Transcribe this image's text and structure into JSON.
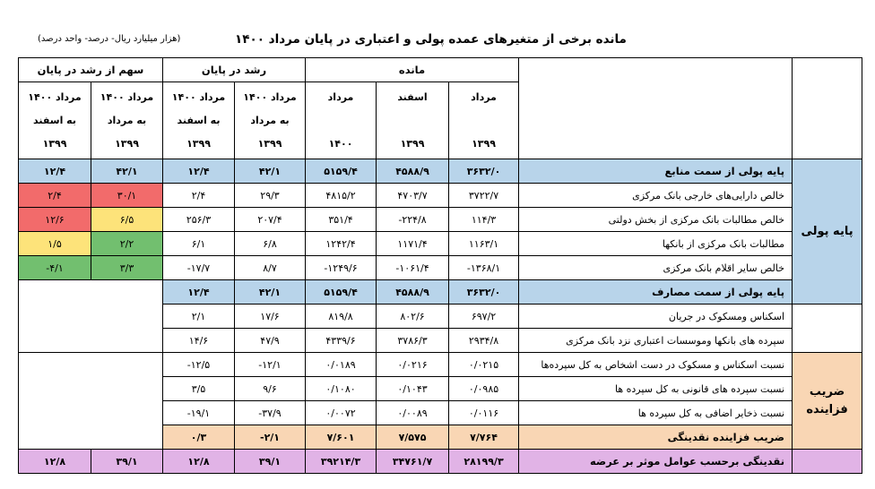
{
  "title": "مانده برخی از متغیرهای عمده پولی و اعتباری در پایان مرداد ۱۴۰۰",
  "unit_note": "(هزار میلیارد ریال- درصد- واحد درصد)",
  "header": {
    "share": "سهم از رشد در پایان",
    "growth": "رشد در پایان",
    "balance": "مانده",
    "share_cols": [
      [
        "مرداد ۱۴۰۰",
        "به اسفند",
        "۱۳۹۹"
      ],
      [
        "مرداد ۱۴۰۰",
        "به مرداد",
        "۱۳۹۹"
      ]
    ],
    "growth_cols": [
      [
        "مرداد ۱۴۰۰",
        "به اسفند",
        "۱۳۹۹"
      ],
      [
        "مرداد ۱۴۰۰",
        "به مرداد",
        "۱۳۹۹"
      ]
    ],
    "balance_cols": [
      [
        "مرداد",
        "",
        "۱۴۰۰"
      ],
      [
        "اسفند",
        "",
        "۱۳۹۹"
      ],
      [
        "مرداد",
        "",
        "۱۳۹۹"
      ]
    ]
  },
  "groups": {
    "base": "پایه پولی",
    "multiplier_line1": "ضریب",
    "multiplier_line2": "فزاینده"
  },
  "colors": {
    "blue": "#b8d4ea",
    "peach": "#f9d6b4",
    "purple": "#e1b3e6",
    "red": "#f26b6b",
    "yellow": "#fde37a",
    "green": "#72bf6f"
  },
  "rows": [
    {
      "label": "پایه پولی از سمت منابع",
      "s1": "۱۲/۴",
      "s2": "۴۲/۱",
      "g1": "۱۲/۴",
      "g2": "۴۲/۱",
      "b1": "۵۱۵۹/۴",
      "b2": "۴۵۸۸/۹",
      "b3": "۳۶۳۲/۰"
    },
    {
      "label": "خالص دارایی‌های خارجی بانک مرکزی",
      "s1": "۲/۴",
      "s2": "۳۰/۱",
      "g1": "۲/۴",
      "g2": "۲۹/۳",
      "b1": "۴۸۱۵/۲",
      "b2": "۴۷۰۳/۷",
      "b3": "۳۷۲۲/۷"
    },
    {
      "label": "خالص مطالبات بانک مرکزی از بخش دولتی",
      "s1": "۱۲/۶",
      "s2": "۶/۵",
      "g1": "۲۵۶/۳",
      "g2": "۲۰۷/۴",
      "b1": "۳۵۱/۴",
      "b2": "-۲۲۴/۸",
      "b3": "۱۱۴/۳"
    },
    {
      "label": "مطالبات بانک مرکزی از بانکها",
      "s1": "۱/۵",
      "s2": "۲/۲",
      "g1": "۶/۱",
      "g2": "۶/۸",
      "b1": "۱۲۴۲/۴",
      "b2": "۱۱۷۱/۴",
      "b3": "۱۱۶۳/۱"
    },
    {
      "label": "خالص سایر اقلام بانک مرکزی",
      "s1": "-۴/۱",
      "s2": "۳/۳",
      "g1": "-۱۷/۷",
      "g2": "۸/۷",
      "b1": "-۱۲۴۹/۶",
      "b2": "-۱۰۶۱/۴",
      "b3": "-۱۳۶۸/۱"
    },
    {
      "label": "پایه پولی از سمت مصارف",
      "g1": "۱۲/۴",
      "g2": "۴۲/۱",
      "b1": "۵۱۵۹/۴",
      "b2": "۴۵۸۸/۹",
      "b3": "۳۶۳۲/۰"
    },
    {
      "label": "اسکناس ومسکوک در جریان",
      "g1": "۲/۱",
      "g2": "۱۷/۶",
      "b1": "۸۱۹/۸",
      "b2": "۸۰۲/۶",
      "b3": "۶۹۷/۲"
    },
    {
      "label": "سپرده های بانکها وموسسات اعتباری نزد بانک مرکزی",
      "g1": "۱۴/۶",
      "g2": "۴۷/۹",
      "b1": "۴۳۳۹/۶",
      "b2": "۳۷۸۶/۳",
      "b3": "۲۹۳۴/۸"
    },
    {
      "label": "نسبت اسکناس و مسکوک در دست اشخاص به کل سپرده‌ها",
      "g1": "-۱۲/۵",
      "g2": "-۱۲/۱",
      "b1": "۰/۰۱۸۹",
      "b2": "۰/۰۲۱۶",
      "b3": "۰/۰۲۱۵"
    },
    {
      "label": "نسبت سپرده های قانونی به کل سپرده ها",
      "g1": "۳/۵",
      "g2": "۹/۶",
      "b1": "۰/۱۰۸۰",
      "b2": "۰/۱۰۴۳",
      "b3": "۰/۰۹۸۵"
    },
    {
      "label": "نسبت ذخایر اضافی به کل سپرده ها",
      "g1": "-۱۹/۱",
      "g2": "-۳۷/۹",
      "b1": "۰/۰۰۷۲",
      "b2": "۰/۰۰۸۹",
      "b3": "۰/۰۱۱۶"
    },
    {
      "label": "ضریب فزاینده نقدینگی",
      "g1": "۰/۳",
      "g2": "-۲/۱",
      "b1": "۷/۶۰۱",
      "b2": "۷/۵۷۵",
      "b3": "۷/۷۶۴"
    },
    {
      "label": "نقدینگی برحسب عوامل موثر بر عرضه",
      "s1": "۱۲/۸",
      "s2": "۳۹/۱",
      "g1": "۱۲/۸",
      "g2": "۳۹/۱",
      "b1": "۳۹۲۱۴/۳",
      "b2": "۳۴۷۶۱/۷",
      "b3": "۲۸۱۹۹/۳"
    }
  ]
}
